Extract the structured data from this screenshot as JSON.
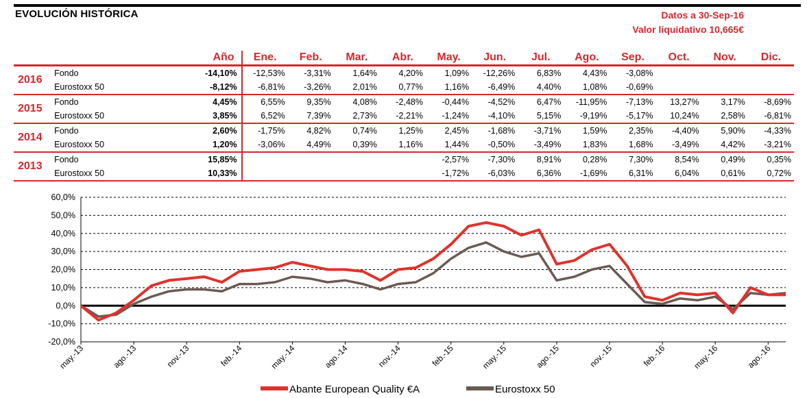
{
  "header": {
    "title": "EVOLUCIÓN HISTÓRICA",
    "date_line": "Datos a 30-Sep-16",
    "nav_line": "Valor liquidativo 10,665€"
  },
  "table": {
    "year_header": "Año",
    "months": [
      "Ene.",
      "Feb.",
      "Mar.",
      "Abr.",
      "May.",
      "Jun.",
      "Jul.",
      "Ago.",
      "Sep.",
      "Oct.",
      "Nov.",
      "Dic."
    ],
    "years": [
      {
        "year": "2016",
        "rows": [
          {
            "label": "Fondo",
            "total": "-14,10%",
            "months": [
              "-12,53%",
              "-3,31%",
              "1,64%",
              "4,20%",
              "1,09%",
              "-12,26%",
              "6,83%",
              "4,43%",
              "-3,08%",
              "",
              "",
              ""
            ]
          },
          {
            "label": "Eurostoxx 50",
            "total": "-8,12%",
            "months": [
              "-6,81%",
              "-3,26%",
              "2,01%",
              "0,77%",
              "1,16%",
              "-6,49%",
              "4,40%",
              "1,08%",
              "-0,69%",
              "",
              "",
              ""
            ]
          }
        ]
      },
      {
        "year": "2015",
        "rows": [
          {
            "label": "Fondo",
            "total": "4,45%",
            "months": [
              "6,55%",
              "9,35%",
              "4,08%",
              "-2,48%",
              "-0,44%",
              "-4,52%",
              "6,47%",
              "-11,95%",
              "-7,13%",
              "13,27%",
              "3,17%",
              "-8,69%"
            ]
          },
          {
            "label": "Eurostoxx 50",
            "total": "3,85%",
            "months": [
              "6,52%",
              "7,39%",
              "2,73%",
              "-2,21%",
              "-1,24%",
              "-4,10%",
              "5,15%",
              "-9,19%",
              "-5,17%",
              "10,24%",
              "2,58%",
              "-6,81%"
            ]
          }
        ]
      },
      {
        "year": "2014",
        "rows": [
          {
            "label": "Fondo",
            "total": "2,60%",
            "months": [
              "-1,75%",
              "4,82%",
              "0,74%",
              "1,25%",
              "2,45%",
              "-1,68%",
              "-3,71%",
              "1,59%",
              "2,35%",
              "-4,40%",
              "5,90%",
              "-4,33%"
            ]
          },
          {
            "label": "Eurostoxx 50",
            "total": "1,20%",
            "months": [
              "-3,06%",
              "4,49%",
              "0,39%",
              "1,16%",
              "1,44%",
              "-0,50%",
              "-3,49%",
              "1,83%",
              "1,68%",
              "-3,49%",
              "4,42%",
              "-3,21%"
            ]
          }
        ]
      },
      {
        "year": "2013",
        "rows": [
          {
            "label": "Fondo",
            "total": "15,85%",
            "months": [
              "",
              "",
              "",
              "",
              "-2,57%",
              "-7,30%",
              "8,91%",
              "0,28%",
              "7,30%",
              "8,54%",
              "0,49%",
              "0,35%"
            ]
          },
          {
            "label": "Eurostoxx 50",
            "total": "10,33%",
            "months": [
              "",
              "",
              "",
              "",
              "-1,72%",
              "-6,03%",
              "6,36%",
              "-1,69%",
              "6,31%",
              "6,04%",
              "0,61%",
              "0,72%"
            ]
          }
        ]
      }
    ]
  },
  "colors": {
    "accent": "#d7262b",
    "fund": "#e0322c",
    "index": "#6b5a52"
  },
  "chart_data": {
    "type": "line",
    "x": [
      "may.-13",
      "jun.-13",
      "jul.-13",
      "ago.-13",
      "sep.-13",
      "oct.-13",
      "nov.-13",
      "dic.-13",
      "ene.-14",
      "feb.-14",
      "mar.-14",
      "abr.-14",
      "may.-14",
      "jun.-14",
      "jul.-14",
      "ago.-14",
      "sep.-14",
      "oct.-14",
      "nov.-14",
      "dic.-14",
      "ene.-15",
      "feb.-15",
      "mar.-15",
      "abr.-15",
      "may.-15",
      "jun.-15",
      "jul.-15",
      "ago.-15",
      "sep.-15",
      "oct.-15",
      "nov.-15",
      "dic.-15",
      "ene.-16",
      "feb.-16",
      "mar.-16",
      "abr.-16",
      "may.-16",
      "jun.-16",
      "jul.-16",
      "ago.-16",
      "sep.-16"
    ],
    "tick_labels": [
      "may.-13",
      "ago.-13",
      "nov.-13",
      "feb.-14",
      "may.-14",
      "ago.-14",
      "nov.-14",
      "feb.-15",
      "may.-15",
      "ago.-15",
      "nov.-15",
      "feb.-16",
      "may.-16",
      "ago.-16"
    ],
    "series": [
      {
        "name": "Abante European Quality €A",
        "values": [
          0,
          -8,
          -4,
          3,
          11,
          14,
          15,
          16,
          13,
          19,
          20,
          21,
          24,
          22,
          20,
          20,
          19,
          14,
          20,
          21,
          26,
          34,
          44,
          46,
          44,
          39,
          42,
          23,
          25,
          31,
          34,
          22,
          5,
          3,
          7,
          6,
          7,
          -4,
          10,
          6,
          6
        ]
      },
      {
        "name": "Eurostoxx 50",
        "values": [
          0,
          -6,
          -5,
          1,
          5,
          8,
          9,
          9,
          8,
          12,
          12,
          13,
          16,
          15,
          13,
          14,
          12,
          9,
          12,
          13,
          18,
          26,
          32,
          35,
          30,
          27,
          29,
          14,
          16,
          20,
          22,
          12,
          2,
          1,
          4,
          3,
          5,
          -2,
          7,
          6,
          7
        ]
      }
    ],
    "yticks": [
      "60,0%",
      "50,0%",
      "40,0%",
      "30,0%",
      "20,0%",
      "10,0%",
      "0,0%",
      "-10,0%",
      "-20,0%"
    ],
    "ylim": [
      -20,
      60
    ],
    "grid": true,
    "legend_position": "bottom"
  }
}
